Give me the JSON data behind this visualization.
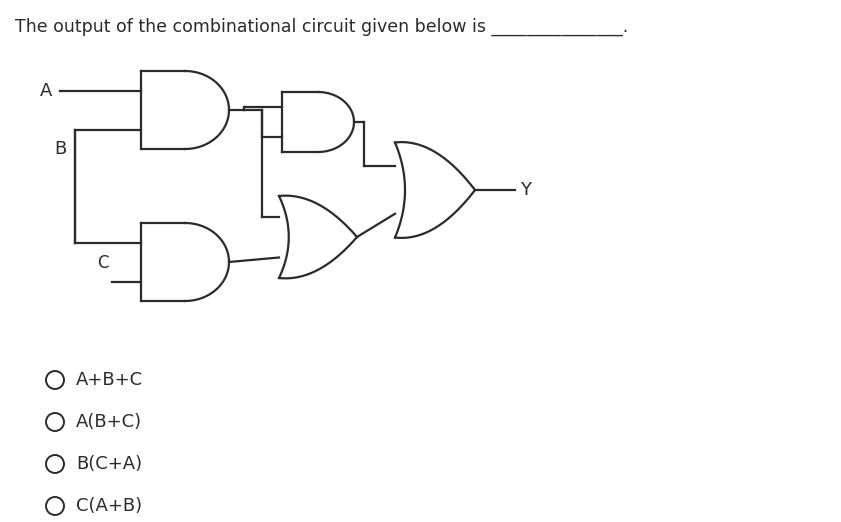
{
  "title": "The output of the combinational circuit given below is",
  "underline": "_______________",
  "period": ".",
  "options": [
    "A+B+C",
    "A(B+C)",
    "B(C+A)",
    "C(A+B)"
  ],
  "bg_color": "#ffffff",
  "line_color": "#2b2b2b",
  "lw": 1.6,
  "title_fontsize": 12.5,
  "options_fontsize": 13,
  "label_fontsize": 13
}
